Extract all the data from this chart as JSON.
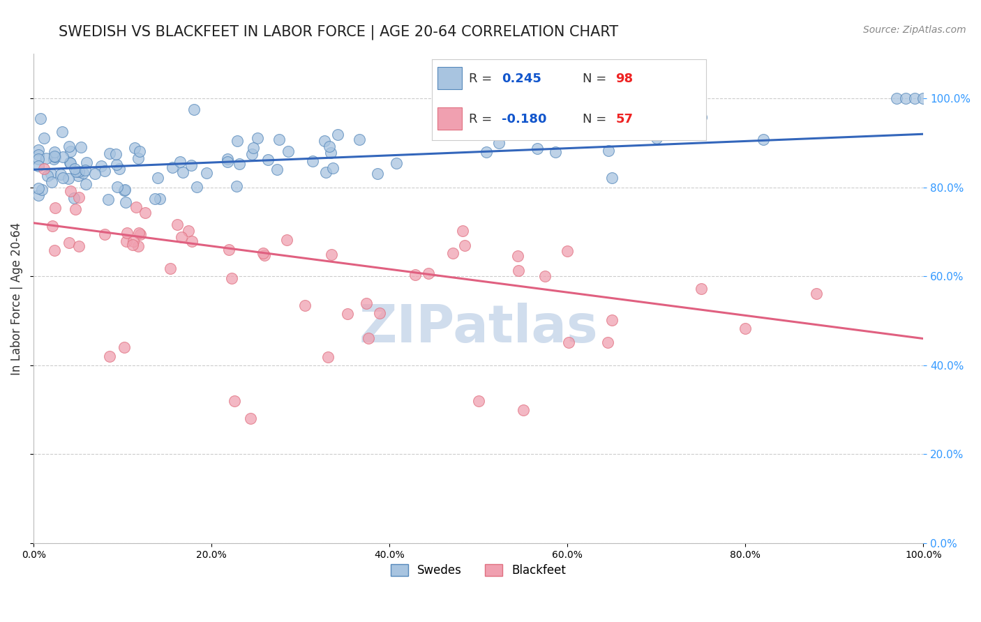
{
  "title": "SWEDISH VS BLACKFEET IN LABOR FORCE | AGE 20-64 CORRELATION CHART",
  "source": "Source: ZipAtlas.com",
  "ylabel": "In Labor Force | Age 20-64",
  "xlim": [
    0.0,
    1.0
  ],
  "ylim": [
    0.0,
    1.1
  ],
  "swedes_R": 0.245,
  "swedes_N": 98,
  "blackfeet_R": -0.18,
  "blackfeet_N": 57,
  "blue_fill": "#A8C4E0",
  "blue_edge": "#5588BB",
  "pink_fill": "#F0A0B0",
  "pink_edge": "#E07080",
  "blue_line_color": "#3366BB",
  "pink_line_color": "#E06080",
  "legend_R_color": "#1155CC",
  "legend_N_color": "#EE2222",
  "right_axis_color": "#3399FF",
  "watermark_color": "#D0DDED",
  "background_color": "#FFFFFF",
  "sw_trend_y0": 0.84,
  "sw_trend_y1": 0.92,
  "bf_trend_y0": 0.72,
  "bf_trend_y1": 0.46
}
